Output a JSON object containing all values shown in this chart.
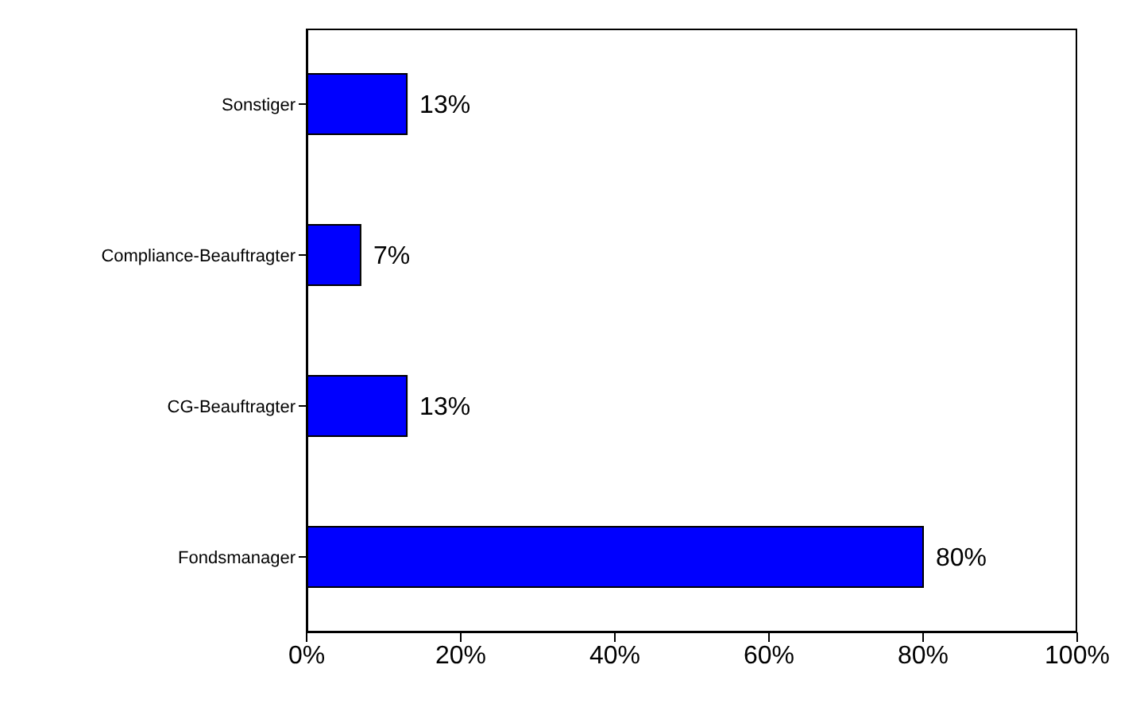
{
  "chart_data": {
    "type": "bar",
    "orientation": "horizontal",
    "categories": [
      "Sonstiger",
      "Compliance-Beauftragter",
      "CG-Beauftragter",
      "Fondsmanager"
    ],
    "values": [
      13,
      7,
      13,
      80
    ],
    "value_labels": [
      "13%",
      "7%",
      "13%",
      "80%"
    ],
    "color": "#0000ff",
    "xlim": [
      0,
      100
    ],
    "xticks": [
      {
        "value": 0,
        "label": "0%"
      },
      {
        "value": 20,
        "label": "20%"
      },
      {
        "value": 40,
        "label": "40%"
      },
      {
        "value": 60,
        "label": "60%"
      },
      {
        "value": 80,
        "label": "80%"
      },
      {
        "value": 100,
        "label": "100%"
      }
    ],
    "grid": false,
    "legend": false
  }
}
